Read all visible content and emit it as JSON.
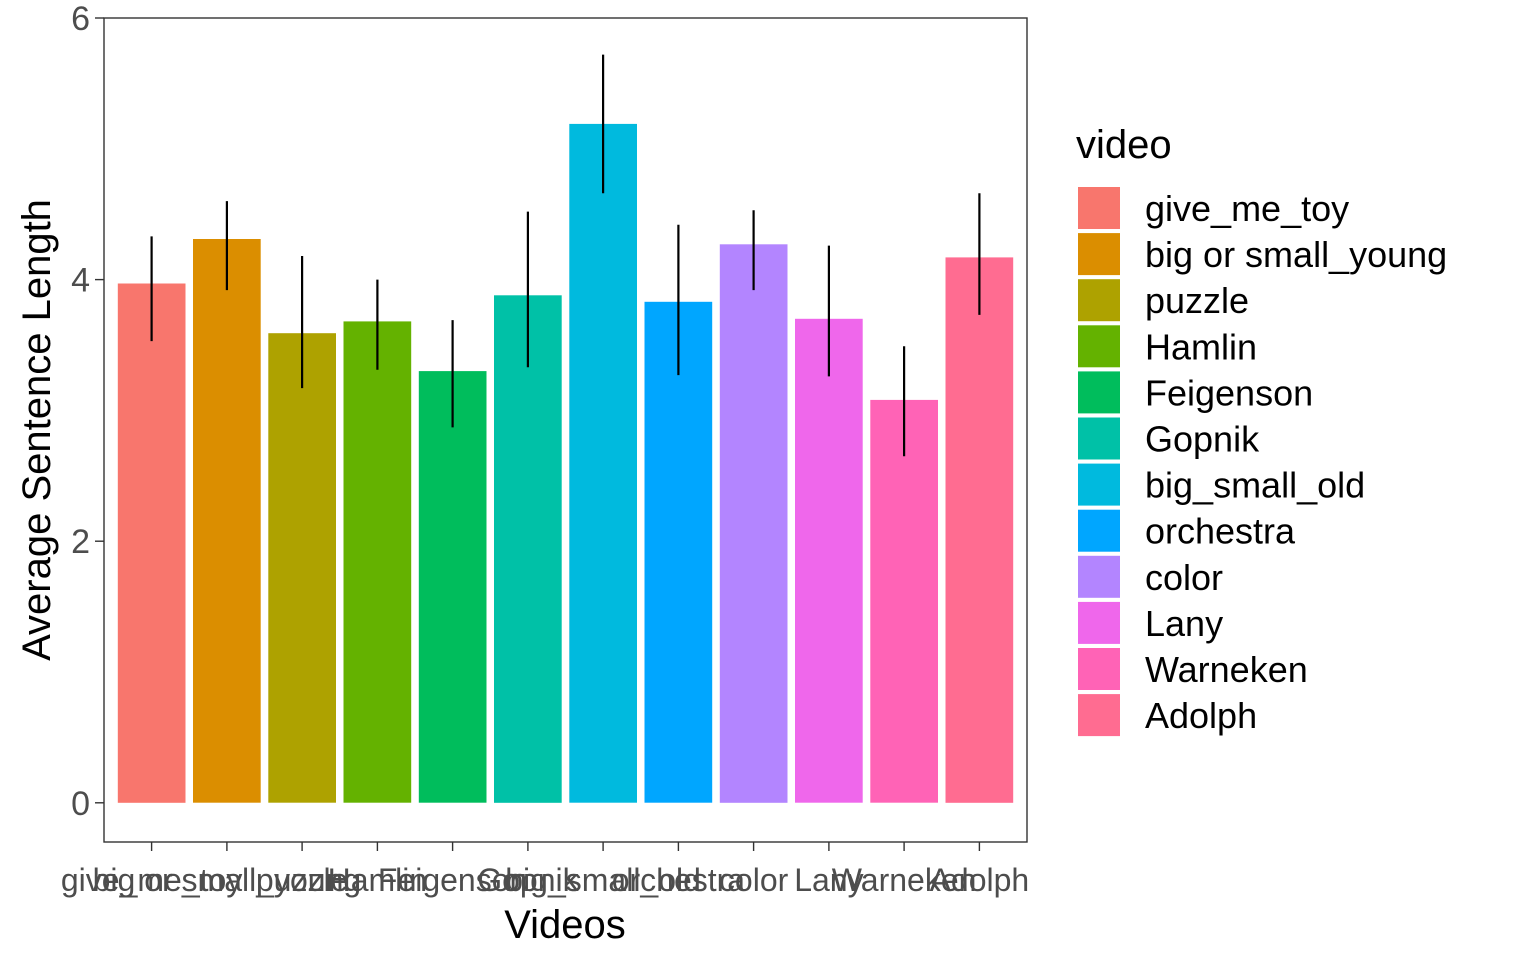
{
  "chart_data": {
    "type": "bar",
    "title": "",
    "xlabel": "Videos",
    "ylabel": "Average Sentence Length",
    "categories": [
      "give_me_toy",
      "big or small_young",
      "puzzle",
      "Hamlin",
      "Feigenson",
      "Gopnik",
      "big_small_old",
      "orchestra",
      "color",
      "Lany",
      "Warneken",
      "Adolph"
    ],
    "values": [
      3.97,
      4.31,
      3.59,
      3.68,
      3.3,
      3.88,
      5.19,
      3.83,
      4.27,
      3.7,
      3.08,
      4.17
    ],
    "error_low": [
      3.53,
      3.92,
      3.17,
      3.31,
      2.87,
      3.33,
      4.66,
      3.27,
      3.92,
      3.26,
      2.65,
      3.73
    ],
    "error_high": [
      4.33,
      4.6,
      4.18,
      4.0,
      3.69,
      4.52,
      5.72,
      4.42,
      4.53,
      4.26,
      3.49,
      4.66
    ],
    "colors": [
      "#F8766D",
      "#DB8E00",
      "#AEA200",
      "#64B200",
      "#00BD5C",
      "#00C1A7",
      "#00BADE",
      "#00A6FF",
      "#B385FF",
      "#EF67EB",
      "#FF63B6",
      "#FF6C91"
    ],
    "ylim": [
      -0.3,
      6.0
    ],
    "yticks": [
      0,
      2,
      4,
      6
    ],
    "grid": false,
    "legend": {
      "title": "video",
      "position": "right",
      "entries": [
        "give_me_toy",
        "big or small_young",
        "puzzle",
        "Hamlin",
        "Feigenson",
        "Gopnik",
        "big_small_old",
        "orchestra",
        "color",
        "Lany",
        "Warneken",
        "Adolph"
      ]
    }
  }
}
